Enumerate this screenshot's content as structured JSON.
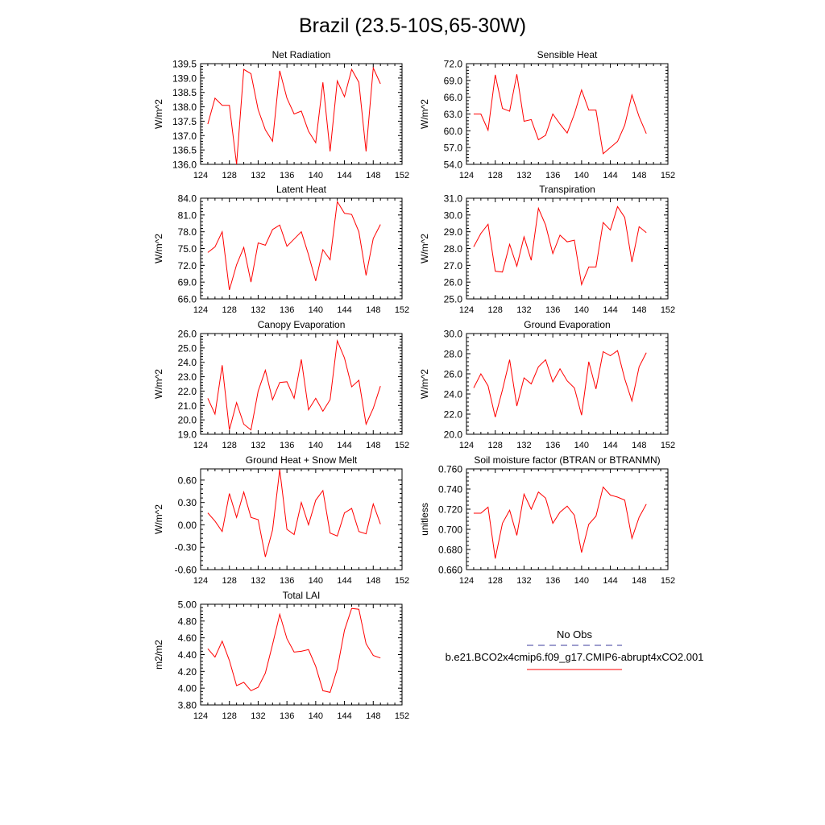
{
  "figure": {
    "title": "Brazil (23.5-10S,65-30W)"
  },
  "style": {
    "line_color": "#ff0000",
    "obs_color": "#3b3b9e",
    "axis_color": "#000000",
    "background": "#ffffff"
  },
  "legend": {
    "obs_label": "No Obs",
    "model_label": "b.e21.BCO2x4cmip6.f09_g17.CMIP6-abrupt4xCO2.001"
  },
  "chart_data": [
    {
      "type": "line",
      "title": "Net Radiation",
      "ylabel": "W/m^2",
      "xlim": [
        124,
        152
      ],
      "xticks": [
        124,
        128,
        132,
        136,
        140,
        144,
        148,
        152
      ],
      "ylim": [
        136.0,
        139.5
      ],
      "yticks": [
        "136.0",
        "136.5",
        "137.0",
        "137.5",
        "138.0",
        "138.5",
        "139.0",
        "139.5"
      ],
      "x": [
        125,
        126,
        127,
        128,
        129,
        130,
        131,
        132,
        133,
        134,
        135,
        136,
        137,
        138,
        139,
        140,
        141,
        142,
        143,
        144,
        145,
        146,
        147,
        148,
        149
      ],
      "series": [
        {
          "values": [
            137.4,
            138.3,
            138.05,
            138.05,
            136.0,
            139.3,
            139.15,
            137.9,
            137.2,
            136.8,
            139.25,
            138.3,
            137.75,
            137.85,
            137.15,
            136.75,
            138.85,
            136.45,
            138.9,
            138.35,
            139.3,
            138.85,
            136.45,
            139.35,
            138.8
          ]
        }
      ]
    },
    {
      "type": "line",
      "title": "Sensible Heat",
      "ylabel": "W/m^2",
      "xlim": [
        124,
        152
      ],
      "xticks": [
        124,
        128,
        132,
        136,
        140,
        144,
        148,
        152
      ],
      "ylim": [
        54.0,
        72.0
      ],
      "yticks": [
        "54.0",
        "57.0",
        "60.0",
        "63.0",
        "66.0",
        "69.0",
        "72.0"
      ],
      "x": [
        125,
        126,
        127,
        128,
        129,
        130,
        131,
        132,
        133,
        134,
        135,
        136,
        137,
        138,
        139,
        140,
        141,
        142,
        143,
        144,
        145,
        146,
        147,
        148,
        149
      ],
      "series": [
        {
          "values": [
            63.0,
            63.0,
            60.1,
            70.0,
            64.0,
            63.5,
            70.1,
            61.7,
            62.0,
            58.4,
            59.2,
            63.0,
            61.2,
            59.6,
            63.0,
            67.3,
            63.7,
            63.7,
            55.9,
            57.0,
            58.1,
            61.0,
            66.4,
            62.5,
            59.5
          ]
        }
      ]
    },
    {
      "type": "line",
      "title": "Latent Heat",
      "ylabel": "W/m^2",
      "xlim": [
        124,
        152
      ],
      "xticks": [
        124,
        128,
        132,
        136,
        140,
        144,
        148,
        152
      ],
      "ylim": [
        66.0,
        84.0
      ],
      "yticks": [
        "66.0",
        "69.0",
        "72.0",
        "75.0",
        "78.0",
        "81.0",
        "84.0"
      ],
      "x": [
        125,
        126,
        127,
        128,
        129,
        130,
        131,
        132,
        133,
        134,
        135,
        136,
        137,
        138,
        139,
        140,
        141,
        142,
        143,
        144,
        145,
        146,
        147,
        148,
        149
      ],
      "series": [
        {
          "values": [
            74.3,
            75.3,
            78.0,
            67.6,
            72.1,
            75.2,
            69.0,
            76.0,
            75.6,
            78.4,
            79.2,
            75.4,
            76.7,
            78.0,
            73.9,
            69.2,
            74.8,
            73.0,
            83.4,
            81.3,
            81.1,
            78.0,
            70.2,
            76.8,
            79.3
          ]
        }
      ]
    },
    {
      "type": "line",
      "title": "Transpiration",
      "ylabel": "W/m^2",
      "xlim": [
        124,
        152
      ],
      "xticks": [
        124,
        128,
        132,
        136,
        140,
        144,
        148,
        152
      ],
      "ylim": [
        25.0,
        31.0
      ],
      "yticks": [
        "25.0",
        "26.0",
        "27.0",
        "28.0",
        "29.0",
        "30.0",
        "31.0"
      ],
      "x": [
        125,
        126,
        127,
        128,
        129,
        130,
        131,
        132,
        133,
        134,
        135,
        136,
        137,
        138,
        139,
        140,
        141,
        142,
        143,
        144,
        145,
        146,
        147,
        148,
        149
      ],
      "series": [
        {
          "values": [
            28.1,
            28.9,
            29.45,
            26.65,
            26.6,
            28.25,
            26.95,
            28.7,
            27.3,
            30.4,
            29.4,
            27.7,
            28.8,
            28.4,
            28.5,
            25.85,
            26.9,
            26.9,
            29.55,
            29.1,
            30.5,
            29.85,
            27.2,
            29.3,
            28.95
          ]
        }
      ]
    },
    {
      "type": "line",
      "title": "Canopy Evaporation",
      "ylabel": "W/m^2",
      "xlim": [
        124,
        152
      ],
      "xticks": [
        124,
        128,
        132,
        136,
        140,
        144,
        148,
        152
      ],
      "ylim": [
        19.0,
        26.0
      ],
      "yticks": [
        "19.0",
        "20.0",
        "21.0",
        "22.0",
        "23.0",
        "24.0",
        "25.0",
        "26.0"
      ],
      "x": [
        125,
        126,
        127,
        128,
        129,
        130,
        131,
        132,
        133,
        134,
        135,
        136,
        137,
        138,
        139,
        140,
        141,
        142,
        143,
        144,
        145,
        146,
        147,
        148,
        149
      ],
      "series": [
        {
          "values": [
            21.5,
            20.4,
            23.8,
            19.3,
            21.2,
            19.7,
            19.3,
            22.0,
            23.45,
            21.4,
            22.6,
            22.65,
            21.5,
            24.2,
            20.7,
            21.5,
            20.6,
            21.4,
            25.5,
            24.3,
            22.3,
            22.75,
            19.7,
            20.8,
            22.35
          ]
        }
      ]
    },
    {
      "type": "line",
      "title": "Ground Evaporation",
      "ylabel": "W/m^2",
      "xlim": [
        124,
        152
      ],
      "xticks": [
        124,
        128,
        132,
        136,
        140,
        144,
        148,
        152
      ],
      "ylim": [
        20.0,
        30.0
      ],
      "yticks": [
        "20.0",
        "22.0",
        "24.0",
        "26.0",
        "28.0",
        "30.0"
      ],
      "x": [
        125,
        126,
        127,
        128,
        129,
        130,
        131,
        132,
        133,
        134,
        135,
        136,
        137,
        138,
        139,
        140,
        141,
        142,
        143,
        144,
        145,
        146,
        147,
        148,
        149
      ],
      "series": [
        {
          "values": [
            24.6,
            26.0,
            24.8,
            21.7,
            24.4,
            27.4,
            22.8,
            25.6,
            25.0,
            26.7,
            27.4,
            25.2,
            26.5,
            25.3,
            24.6,
            21.9,
            27.2,
            24.5,
            28.2,
            27.8,
            28.3,
            25.5,
            23.3,
            26.7,
            28.1
          ]
        }
      ]
    },
    {
      "type": "line",
      "title": "Ground Heat + Snow Melt",
      "ylabel": "W/m^2",
      "xlim": [
        124,
        152
      ],
      "xticks": [
        124,
        128,
        132,
        136,
        140,
        144,
        148,
        152
      ],
      "ylim": [
        -0.6,
        0.75
      ],
      "yticks": [
        "-0.60",
        "-0.30",
        "0.00",
        "0.30",
        "0.60"
      ],
      "ytickvals": [
        -0.6,
        -0.3,
        0.0,
        0.3,
        0.6
      ],
      "x": [
        125,
        126,
        127,
        128,
        129,
        130,
        131,
        132,
        133,
        134,
        135,
        136,
        137,
        138,
        139,
        140,
        141,
        142,
        143,
        144,
        145,
        146,
        147,
        148,
        149
      ],
      "series": [
        {
          "values": [
            0.16,
            0.05,
            -0.09,
            0.42,
            0.1,
            0.44,
            0.1,
            0.07,
            -0.43,
            -0.07,
            0.74,
            -0.06,
            -0.13,
            0.3,
            0.0,
            0.33,
            0.46,
            -0.11,
            -0.15,
            0.16,
            0.22,
            -0.09,
            -0.12,
            0.28,
            0.01
          ]
        }
      ]
    },
    {
      "type": "line",
      "title": "Soil moisture factor (BTRAN or BTRANMN)",
      "ylabel": "unitless",
      "xlim": [
        124,
        152
      ],
      "xticks": [
        124,
        128,
        132,
        136,
        140,
        144,
        148,
        152
      ],
      "ylim": [
        0.66,
        0.76
      ],
      "yticks": [
        "0.660",
        "0.680",
        "0.700",
        "0.720",
        "0.740",
        "0.760"
      ],
      "x": [
        125,
        126,
        127,
        128,
        129,
        130,
        131,
        132,
        133,
        134,
        135,
        136,
        137,
        138,
        139,
        140,
        141,
        142,
        143,
        144,
        145,
        146,
        147,
        148,
        149
      ],
      "series": [
        {
          "values": [
            0.716,
            0.716,
            0.722,
            0.671,
            0.706,
            0.719,
            0.694,
            0.735,
            0.72,
            0.737,
            0.731,
            0.706,
            0.717,
            0.723,
            0.714,
            0.677,
            0.705,
            0.713,
            0.742,
            0.734,
            0.732,
            0.729,
            0.691,
            0.712,
            0.725
          ]
        }
      ]
    },
    {
      "type": "line",
      "title": "Total LAI",
      "ylabel": "m2/m2",
      "xlim": [
        124,
        152
      ],
      "xticks": [
        124,
        128,
        132,
        136,
        140,
        144,
        148,
        152
      ],
      "ylim": [
        3.8,
        5.0
      ],
      "yticks": [
        "3.80",
        "4.00",
        "4.20",
        "4.40",
        "4.60",
        "4.80",
        "5.00"
      ],
      "x": [
        125,
        126,
        127,
        128,
        129,
        130,
        131,
        132,
        133,
        134,
        135,
        136,
        137,
        138,
        139,
        140,
        141,
        142,
        143,
        144,
        145,
        146,
        147,
        148,
        149
      ],
      "series": [
        {
          "values": [
            4.47,
            4.37,
            4.56,
            4.33,
            4.03,
            4.07,
            3.97,
            4.01,
            4.18,
            4.52,
            4.88,
            4.59,
            4.43,
            4.44,
            4.46,
            4.26,
            3.97,
            3.95,
            4.23,
            4.69,
            4.95,
            4.94,
            4.53,
            4.39,
            4.36
          ]
        }
      ]
    }
  ]
}
